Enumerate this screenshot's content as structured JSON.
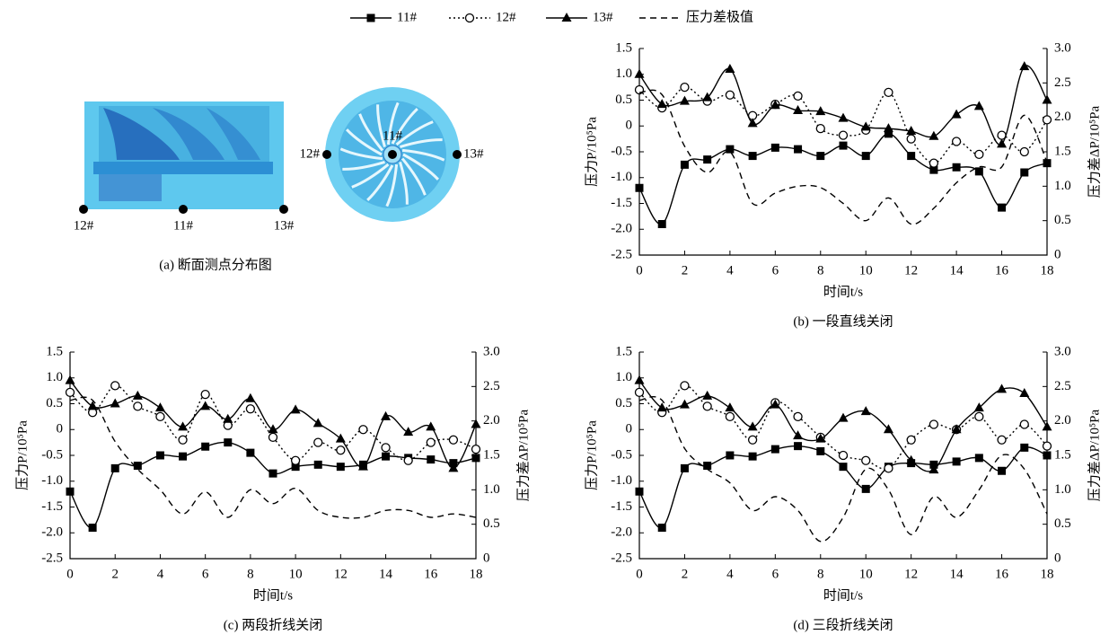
{
  "diagram": {
    "caption": "(a) 断面测点分布图",
    "side_points": [
      "12#",
      "11#",
      "13#"
    ],
    "face_points": [
      "12#",
      "11#",
      "13#"
    ]
  },
  "chart_data": [
    {
      "type": "line",
      "caption": "(b) 一段直线关闭",
      "xlabel": "时间t/s",
      "ylabel": "压力P/10⁵Pa",
      "y2label": "压力差ΔP/10⁵Pa",
      "x": [
        0,
        1,
        2,
        3,
        4,
        5,
        6,
        7,
        8,
        9,
        10,
        11,
        12,
        13,
        14,
        15,
        16,
        17,
        18
      ],
      "xlim": [
        0,
        18
      ],
      "xticks": [
        0,
        2,
        4,
        6,
        8,
        10,
        12,
        14,
        16,
        18
      ],
      "ylim": [
        -2.5,
        1.5
      ],
      "yticks": [
        {
          "value": -2.5,
          "label": "-2.5"
        },
        {
          "value": -2,
          "label": "-2.0"
        },
        {
          "value": -1.5,
          "label": "-1.5"
        },
        {
          "value": -1,
          "label": "-1.0"
        },
        {
          "value": -0.5,
          "label": "-0.5"
        },
        0,
        0.5,
        {
          "value": 1,
          "label": "1.0"
        },
        1.5
      ],
      "y2lim": [
        0,
        3
      ],
      "y2ticks": [
        0,
        0.5,
        {
          "value": 1,
          "label": "1.0"
        },
        1.5,
        {
          "value": 2,
          "label": "2.0"
        },
        2.5,
        {
          "value": 3,
          "label": "3.0"
        }
      ],
      "series": [
        {
          "name": "11#",
          "color": "#000000",
          "marker": "square",
          "style": "solid",
          "values": [
            -1.2,
            -1.9,
            -0.75,
            -0.65,
            -0.45,
            -0.58,
            -0.42,
            -0.45,
            -0.58,
            -0.38,
            -0.58,
            -0.15,
            -0.58,
            -0.85,
            -0.8,
            -0.88,
            -1.58,
            -0.9,
            -0.72
          ]
        },
        {
          "name": "12#",
          "color": "#000000",
          "marker": "circle",
          "style": "dotted",
          "values": [
            0.7,
            0.35,
            0.75,
            0.48,
            0.6,
            0.2,
            0.42,
            0.58,
            -0.05,
            -0.18,
            -0.08,
            0.65,
            -0.25,
            -0.72,
            -0.3,
            -0.55,
            -0.18,
            -0.5,
            0.12
          ]
        },
        {
          "name": "13#",
          "color": "#000000",
          "marker": "triangle",
          "style": "solid",
          "values": [
            1.0,
            0.42,
            0.48,
            0.55,
            1.1,
            0.05,
            0.4,
            0.3,
            0.28,
            0.15,
            -0.02,
            -0.05,
            -0.1,
            -0.2,
            0.22,
            0.38,
            -0.35,
            1.15,
            0.5
          ]
        },
        {
          "name": "压力差极值",
          "color": "#000000",
          "marker": "none",
          "style": "dashed",
          "axis": "y2",
          "values": [
            2.36,
            2.33,
            1.58,
            1.2,
            1.5,
            0.75,
            0.9,
            1.0,
            0.98,
            0.75,
            0.5,
            0.83,
            0.45,
            0.68,
            1.05,
            1.28,
            1.28,
            2.03,
            1.35
          ]
        }
      ]
    },
    {
      "type": "line",
      "caption": "(c) 两段折线关闭",
      "xlabel": "时间t/s",
      "ylabel": "压力P/10⁵Pa",
      "y2label": "压力差ΔP/10⁵Pa",
      "x": [
        0,
        1,
        2,
        3,
        4,
        5,
        6,
        7,
        8,
        9,
        10,
        11,
        12,
        13,
        14,
        15,
        16,
        17,
        18
      ],
      "xlim": [
        0,
        18
      ],
      "xticks": [
        0,
        2,
        4,
        6,
        8,
        10,
        12,
        14,
        16,
        18
      ],
      "ylim": [
        -2.5,
        1.5
      ],
      "yticks": [
        {
          "value": -2.5,
          "label": "-2.5"
        },
        {
          "value": -2,
          "label": "-2.0"
        },
        {
          "value": -1.5,
          "label": "-1.5"
        },
        {
          "value": -1,
          "label": "-1.0"
        },
        {
          "value": -0.5,
          "label": "-0.5"
        },
        0,
        0.5,
        {
          "value": 1,
          "label": "1.0"
        },
        1.5
      ],
      "y2lim": [
        0,
        3
      ],
      "y2ticks": [
        0,
        0.5,
        {
          "value": 1,
          "label": "1.0"
        },
        1.5,
        {
          "value": 2,
          "label": "2.0"
        },
        2.5,
        {
          "value": 3,
          "label": "3.0"
        }
      ],
      "series": [
        {
          "name": "11#",
          "color": "#000000",
          "marker": "square",
          "style": "solid",
          "values": [
            -1.2,
            -1.9,
            -0.75,
            -0.7,
            -0.5,
            -0.52,
            -0.33,
            -0.25,
            -0.45,
            -0.85,
            -0.72,
            -0.68,
            -0.72,
            -0.68,
            -0.52,
            -0.55,
            -0.58,
            -0.65,
            -0.55
          ]
        },
        {
          "name": "12#",
          "color": "#000000",
          "marker": "circle",
          "style": "dotted",
          "values": [
            0.72,
            0.33,
            0.85,
            0.45,
            0.25,
            -0.2,
            0.68,
            0.08,
            0.4,
            -0.15,
            -0.6,
            -0.25,
            -0.4,
            0.0,
            -0.35,
            -0.6,
            -0.25,
            -0.2,
            -0.38
          ]
        },
        {
          "name": "13#",
          "color": "#000000",
          "marker": "triangle",
          "style": "solid",
          "values": [
            0.95,
            0.45,
            0.5,
            0.65,
            0.42,
            0.05,
            0.45,
            0.2,
            0.6,
            0.0,
            0.38,
            0.12,
            -0.18,
            -0.72,
            0.25,
            -0.05,
            0.05,
            -0.75,
            0.1
          ]
        },
        {
          "name": "压力差极值",
          "color": "#000000",
          "marker": "none",
          "style": "dashed",
          "axis": "y2",
          "values": [
            2.3,
            2.3,
            1.7,
            1.3,
            1.0,
            0.65,
            0.97,
            0.6,
            1.0,
            0.8,
            1.02,
            0.7,
            0.6,
            0.6,
            0.7,
            0.7,
            0.6,
            0.65,
            0.6
          ]
        }
      ]
    },
    {
      "type": "line",
      "caption": "(d) 三段折线关闭",
      "xlabel": "时间t/s",
      "ylabel": "压力P/10⁵Pa",
      "y2label": "压力差ΔP/10⁵Pa",
      "x": [
        0,
        1,
        2,
        3,
        4,
        5,
        6,
        7,
        8,
        9,
        10,
        11,
        12,
        13,
        14,
        15,
        16,
        17,
        18
      ],
      "xlim": [
        0,
        18
      ],
      "xticks": [
        0,
        2,
        4,
        6,
        8,
        10,
        12,
        14,
        16,
        18
      ],
      "ylim": [
        -2.5,
        1.5
      ],
      "yticks": [
        {
          "value": -2.5,
          "label": "-2.5"
        },
        {
          "value": -2,
          "label": "-2.0"
        },
        {
          "value": -1.5,
          "label": "-1.5"
        },
        {
          "value": -1,
          "label": "-1.0"
        },
        {
          "value": -0.5,
          "label": "-0.5"
        },
        0,
        0.5,
        {
          "value": 1,
          "label": "1.0"
        },
        1.5
      ],
      "y2lim": [
        0,
        3
      ],
      "y2ticks": [
        0,
        0.5,
        {
          "value": 1,
          "label": "1.0"
        },
        1.5,
        {
          "value": 2,
          "label": "2.0"
        },
        2.5,
        {
          "value": 3,
          "label": "3.0"
        }
      ],
      "series": [
        {
          "name": "11#",
          "color": "#000000",
          "marker": "square",
          "style": "solid",
          "values": [
            -1.2,
            -1.9,
            -0.75,
            -0.7,
            -0.5,
            -0.52,
            -0.38,
            -0.32,
            -0.42,
            -0.72,
            -1.15,
            -0.72,
            -0.65,
            -0.68,
            -0.62,
            -0.55,
            -0.8,
            -0.35,
            -0.5
          ]
        },
        {
          "name": "12#",
          "color": "#000000",
          "marker": "circle",
          "style": "dotted",
          "values": [
            0.72,
            0.33,
            0.85,
            0.45,
            0.25,
            -0.2,
            0.52,
            0.25,
            -0.15,
            -0.5,
            -0.6,
            -0.75,
            -0.2,
            0.1,
            0.0,
            0.25,
            -0.2,
            0.1,
            -0.32
          ]
        },
        {
          "name": "13#",
          "color": "#000000",
          "marker": "triangle",
          "style": "solid",
          "values": [
            0.95,
            0.42,
            0.48,
            0.65,
            0.42,
            0.05,
            0.48,
            -0.12,
            -0.18,
            0.22,
            0.35,
            0.0,
            -0.6,
            -0.78,
            0.0,
            0.42,
            0.78,
            0.7,
            0.05
          ]
        },
        {
          "name": "压力差极值",
          "color": "#000000",
          "marker": "none",
          "style": "dashed",
          "axis": "y2",
          "values": [
            2.3,
            2.3,
            1.6,
            1.3,
            1.1,
            0.7,
            0.9,
            0.7,
            0.25,
            0.6,
            1.3,
            1.0,
            0.35,
            0.9,
            0.6,
            1.0,
            1.5,
            1.3,
            0.65
          ]
        }
      ]
    }
  ]
}
